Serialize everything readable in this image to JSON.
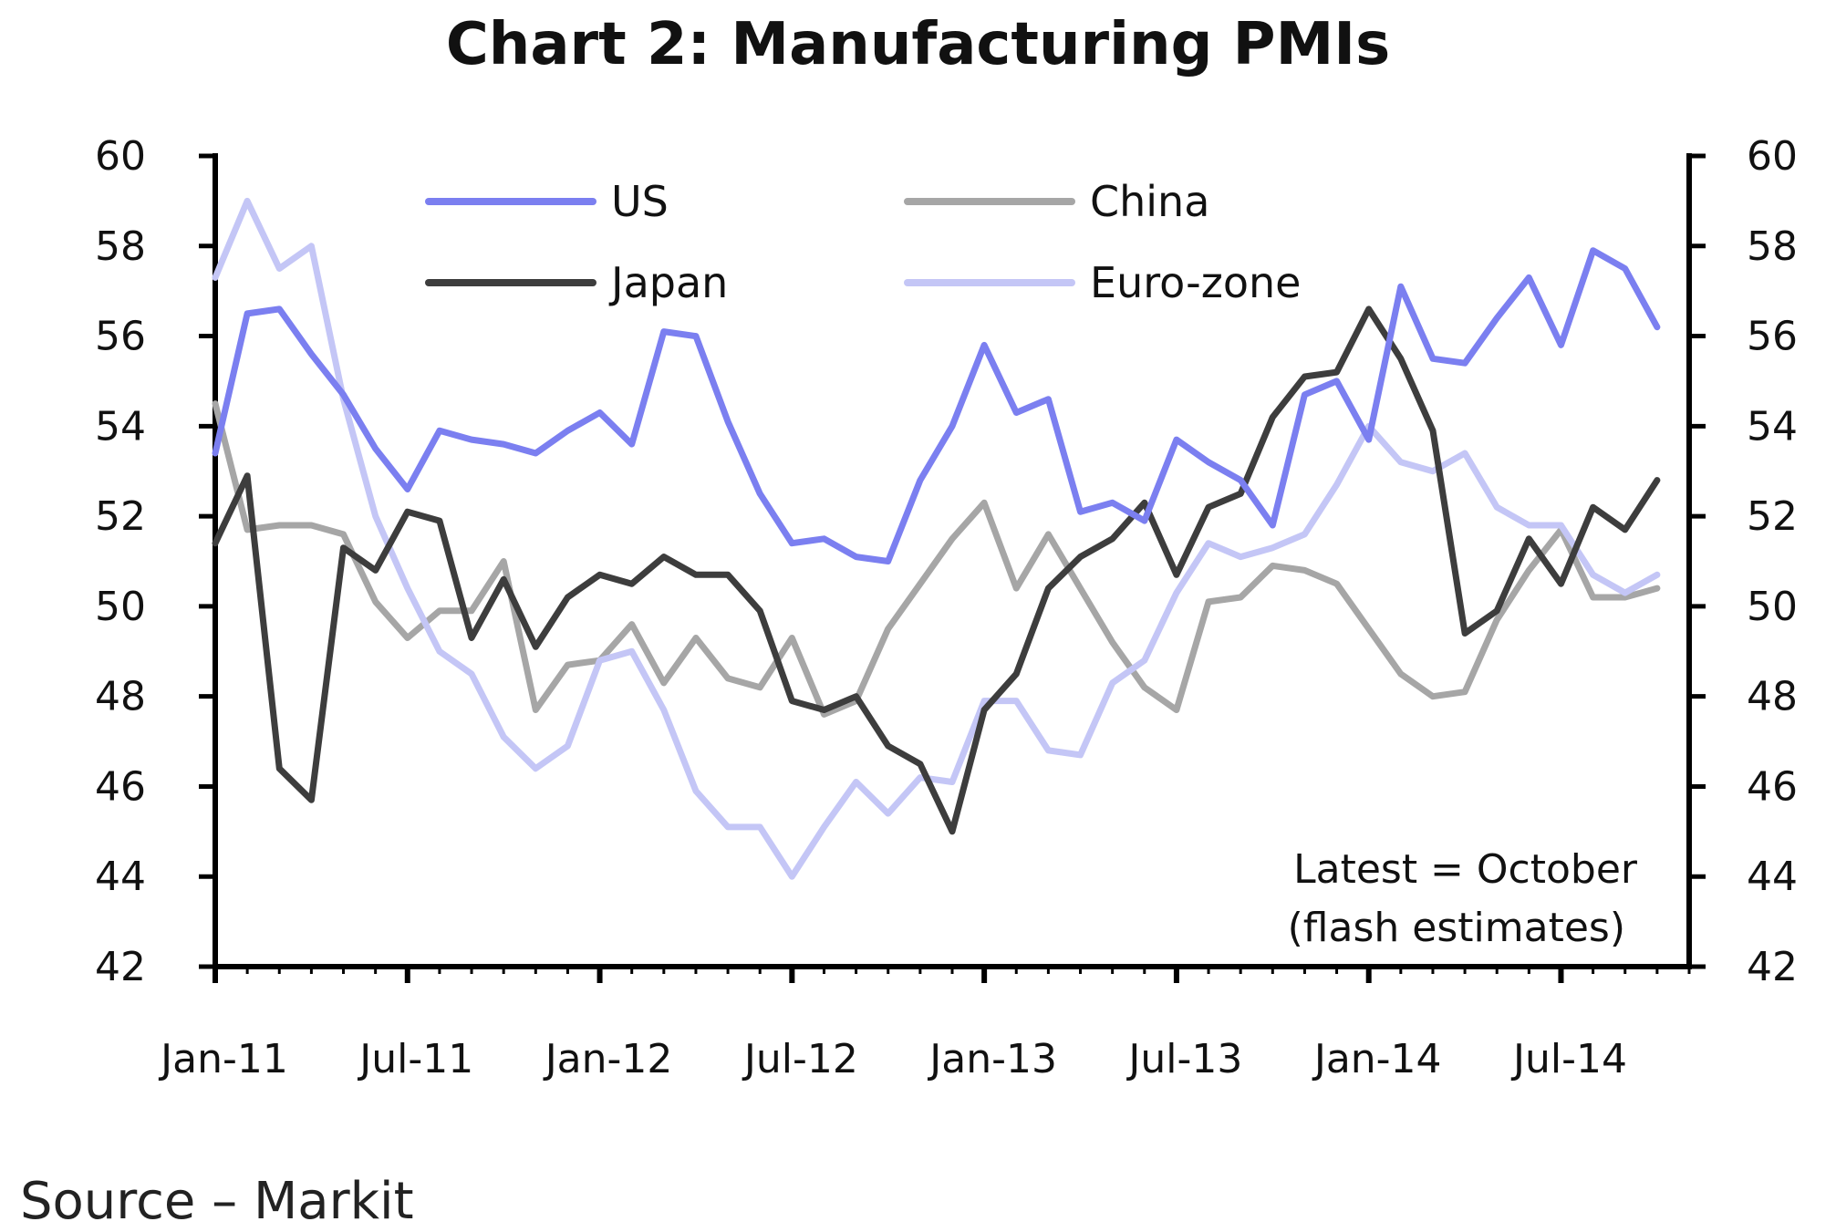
{
  "chart_data": {
    "type": "line",
    "title": "Chart 2: Manufacturing PMIs",
    "source": "Source – Markit",
    "annotation": [
      "Latest = October",
      "(flash estimates)"
    ],
    "xlabel": "",
    "ylabel": "",
    "ylim": [
      42,
      60
    ],
    "yticks": [
      42,
      44,
      46,
      48,
      50,
      52,
      54,
      56,
      58,
      60
    ],
    "x_tick_labels": [
      "Jan-11",
      "Jul-11",
      "Jan-12",
      "Jul-12",
      "Jan-13",
      "Jul-13",
      "Jan-14",
      "Jul-14"
    ],
    "x_tick_months": [
      "2011-01",
      "2011-07",
      "2012-01",
      "2012-07",
      "2013-01",
      "2013-07",
      "2014-01",
      "2014-07"
    ],
    "x_range": [
      "2011-01",
      "2014-11"
    ],
    "dual_axis": true,
    "grid": false,
    "legend_position": "top-left",
    "x": [
      "2011-01",
      "2011-02",
      "2011-03",
      "2011-04",
      "2011-05",
      "2011-06",
      "2011-07",
      "2011-08",
      "2011-09",
      "2011-10",
      "2011-11",
      "2011-12",
      "2012-01",
      "2012-02",
      "2012-03",
      "2012-04",
      "2012-05",
      "2012-06",
      "2012-07",
      "2012-08",
      "2012-09",
      "2012-10",
      "2012-11",
      "2012-12",
      "2013-01",
      "2013-02",
      "2013-03",
      "2013-04",
      "2013-05",
      "2013-06",
      "2013-07",
      "2013-08",
      "2013-09",
      "2013-10",
      "2013-11",
      "2013-12",
      "2014-01",
      "2014-02",
      "2014-03",
      "2014-04",
      "2014-05",
      "2014-06",
      "2014-07",
      "2014-08",
      "2014-09",
      "2014-10"
    ],
    "series": [
      {
        "name": "US",
        "color": "#7b7ff0",
        "values": [
          53.4,
          56.5,
          56.6,
          55.6,
          54.7,
          53.5,
          52.6,
          53.9,
          53.7,
          53.6,
          53.4,
          53.9,
          54.3,
          53.6,
          56.1,
          56.0,
          54.1,
          52.5,
          51.4,
          51.5,
          51.1,
          51.0,
          52.8,
          54.0,
          55.8,
          54.3,
          54.6,
          52.1,
          52.3,
          51.9,
          53.7,
          53.2,
          52.8,
          51.8,
          54.7,
          55.0,
          53.7,
          57.1,
          55.5,
          55.4,
          56.4,
          57.3,
          55.8,
          57.9,
          57.5,
          56.2
        ]
      },
      {
        "name": "China",
        "color": "#a6a6a6",
        "values": [
          54.5,
          51.7,
          51.8,
          51.8,
          51.6,
          50.1,
          49.3,
          49.9,
          49.9,
          51.0,
          47.7,
          48.7,
          48.8,
          49.6,
          48.3,
          49.3,
          48.4,
          48.2,
          49.3,
          47.6,
          47.9,
          49.5,
          50.5,
          51.5,
          52.3,
          50.4,
          51.6,
          50.4,
          49.2,
          48.2,
          47.7,
          50.1,
          50.2,
          50.9,
          50.8,
          50.5,
          49.5,
          48.5,
          48.0,
          48.1,
          49.7,
          50.8,
          51.7,
          50.2,
          50.2,
          50.4
        ]
      },
      {
        "name": "Japan",
        "color": "#3d3d3d",
        "values": [
          51.4,
          52.9,
          46.4,
          45.7,
          51.3,
          50.8,
          52.1,
          51.9,
          49.3,
          50.6,
          49.1,
          50.2,
          50.7,
          50.5,
          51.1,
          50.7,
          50.7,
          49.9,
          47.9,
          47.7,
          48.0,
          46.9,
          46.5,
          45.0,
          47.7,
          48.5,
          50.4,
          51.1,
          51.5,
          52.3,
          50.7,
          52.2,
          52.5,
          54.2,
          55.1,
          55.2,
          56.6,
          55.5,
          53.9,
          49.4,
          49.9,
          51.5,
          50.5,
          52.2,
          51.7,
          52.8
        ]
      },
      {
        "name": "Euro-zone",
        "color": "#c4c6f6",
        "values": [
          57.3,
          59.0,
          57.5,
          58.0,
          54.6,
          52.0,
          50.4,
          49.0,
          48.5,
          47.1,
          46.4,
          46.9,
          48.8,
          49.0,
          47.7,
          45.9,
          45.1,
          45.1,
          44.0,
          45.1,
          46.1,
          45.4,
          46.2,
          46.1,
          47.9,
          47.9,
          46.8,
          46.7,
          48.3,
          48.8,
          50.3,
          51.4,
          51.1,
          51.3,
          51.6,
          52.7,
          54.0,
          53.2,
          53.0,
          53.4,
          52.2,
          51.8,
          51.8,
          50.7,
          50.3,
          50.7
        ]
      }
    ]
  }
}
